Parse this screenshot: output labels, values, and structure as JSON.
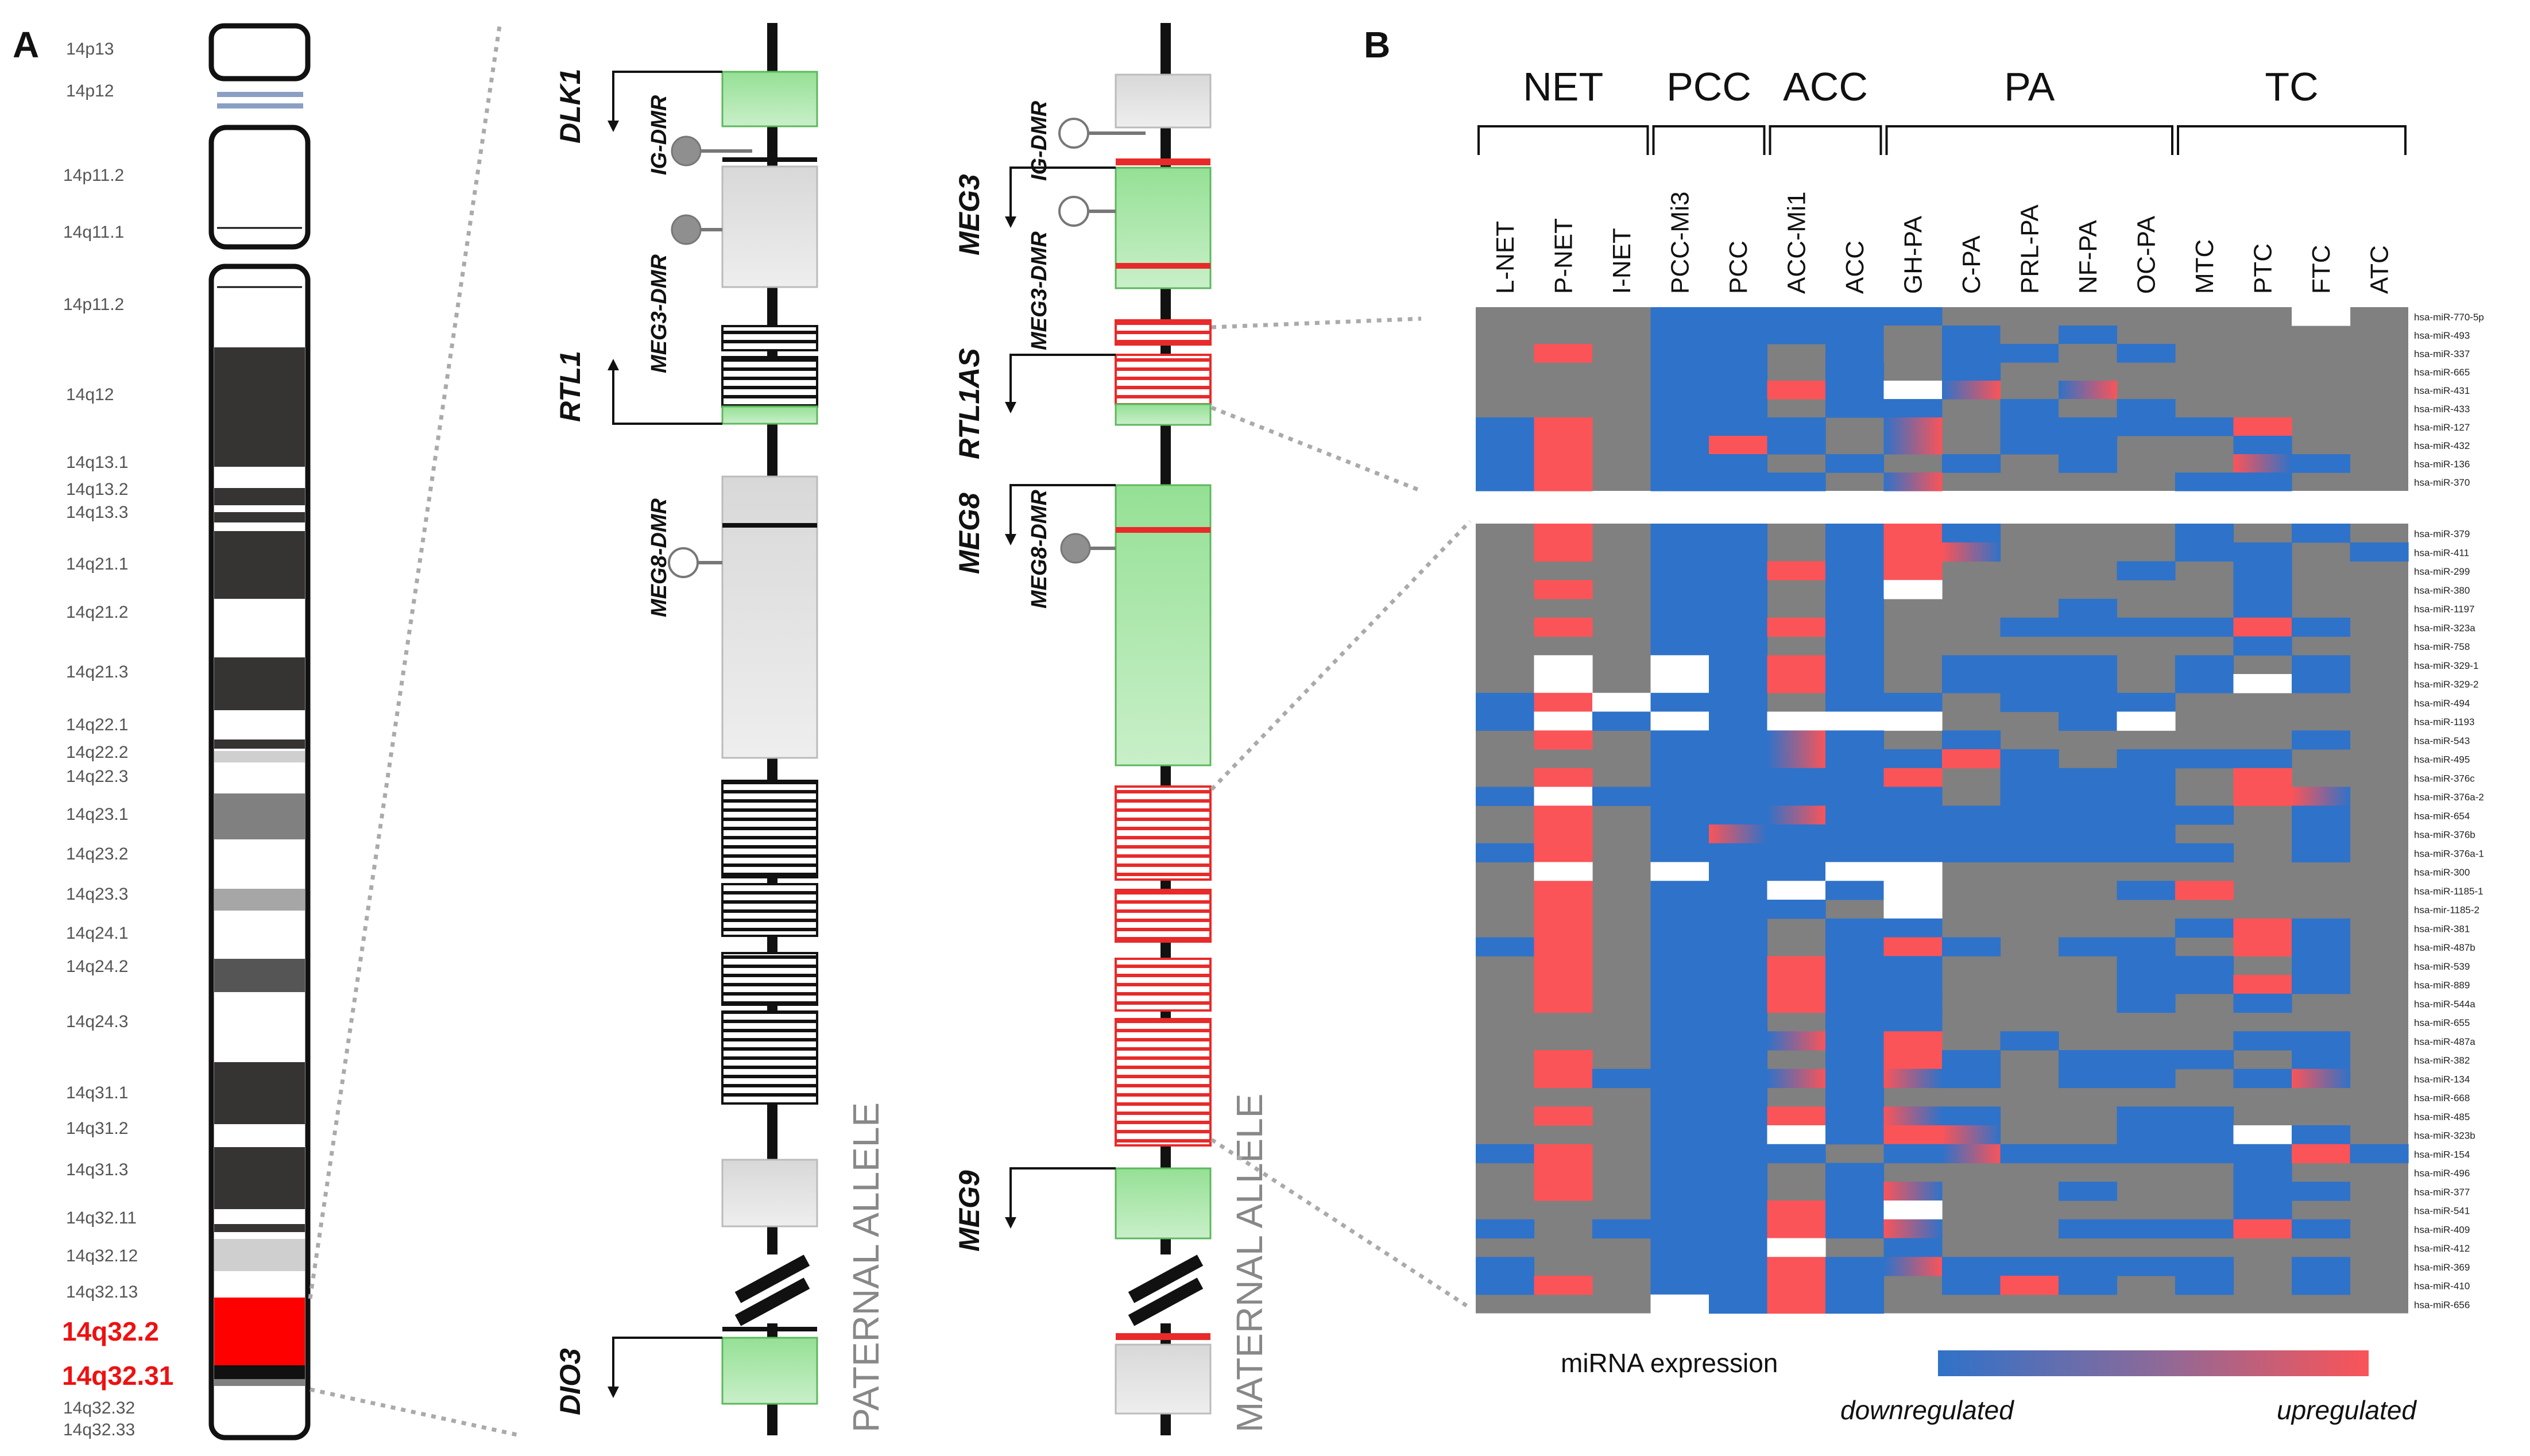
{
  "panel_a": {
    "letter": "A",
    "bands": [
      "14p13",
      "14p12",
      "14p11.2",
      "14q11.1",
      "14p11.2",
      "14q12",
      "14q13.1",
      "14q13.2",
      "14q13.3",
      "14q21.1",
      "14q21.2",
      "14q21.3",
      "14q22.1",
      "14q22.2",
      "14q22.3",
      "14q23.1",
      "14q23.2",
      "14q23.3",
      "14q24.1",
      "14q24.2",
      "14q24.3",
      "14q31.1",
      "14q31.2",
      "14q31.3",
      "14q32.11",
      "14q32.12",
      "14q32.13",
      "14q32.2",
      "14q32.31",
      "14q32.32",
      "14q32.33"
    ],
    "highlight_bands": [
      "14q32.2",
      "14q32.31"
    ],
    "genes": {
      "dlk1": "DLK1",
      "rtl1": "RTL1",
      "dio3": "DIO3",
      "meg3": "MEG3",
      "rtl1as": "RTL1AS",
      "meg8": "MEG8",
      "meg9": "MEG9"
    },
    "dmrs": {
      "ig": "IG-DMR",
      "meg3": "MEG3-DMR",
      "meg8": "MEG8-DMR"
    },
    "paternal_label": "PATERNAL ALLELE",
    "maternal_label": "MATERNAL ALLELE"
  },
  "panel_b": {
    "letter": "B",
    "groups": [
      {
        "name": "NET",
        "span": [
          0,
          2
        ]
      },
      {
        "name": "PCC",
        "span": [
          3,
          4
        ]
      },
      {
        "name": "ACC",
        "span": [
          5,
          6
        ]
      },
      {
        "name": "PA",
        "span": [
          7,
          11
        ]
      },
      {
        "name": "TC",
        "span": [
          12,
          15
        ]
      }
    ],
    "columns": [
      "L-NET",
      "P-NET",
      "I-NET",
      "PCC-Mi3",
      "PCC",
      "ACC-Mi1",
      "ACC",
      "GH-PA",
      "C-PA",
      "PRL-PA",
      "NF-PA",
      "OC-PA",
      "MTC",
      "PTC",
      "FTC",
      "ATC"
    ],
    "rows_top": [
      "hsa-miR-770-5p",
      "hsa-miR-493",
      "hsa-miR-337",
      "hsa-miR-665",
      "hsa-miR-431",
      "hsa-miR-433",
      "hsa-miR-127",
      "hsa-miR-432",
      "hsa-miR-136",
      "hsa-miR-370"
    ],
    "rows_bottom": [
      "hsa-miR-379",
      "hsa-miR-411",
      "hsa-miR-299",
      "hsa-miR-380",
      "hsa-miR-1197",
      "hsa-miR-323a",
      "hsa-miR-758",
      "hsa-miR-329-1",
      "hsa-miR-329-2",
      "hsa-miR-494",
      "hsa-miR-1193",
      "hsa-miR-543",
      "hsa-miR-495",
      "hsa-miR-376c",
      "hsa-miR-376a-2",
      "hsa-miR-654",
      "hsa-miR-376b",
      "hsa-miR-376a-1",
      "hsa-miR-300",
      "hsa-miR-1185-1",
      "hsa-mir-1185-2",
      "hsa-miR-381",
      "hsa-miR-487b",
      "hsa-miR-539",
      "hsa-miR-889",
      "hsa-miR-544a",
      "hsa-miR-655",
      "hsa-miR-487a",
      "hsa-miR-382",
      "hsa-miR-134",
      "hsa-miR-668",
      "hsa-miR-485",
      "hsa-miR-323b",
      "hsa-miR-154",
      "hsa-miR-496",
      "hsa-miR-377",
      "hsa-miR-541",
      "hsa-miR-409",
      "hsa-miR-412",
      "hsa-miR-369",
      "hsa-miR-410",
      "hsa-miR-656"
    ],
    "legend": {
      "title": "miRNA expression",
      "low": "downregulated",
      "high": "upregulated"
    },
    "colors": {
      "down": "#2f72c9",
      "up": "#fa5458",
      "none": "#808080",
      "missing": "#ffffff"
    }
  },
  "chart_data": {
    "type": "heatmap",
    "title": "miRNA expression",
    "value_scale": "-1 = downregulated, 0 = not changed, 1 = upregulated, g = gradient (down to up), h = gradient (up to down), w = not available",
    "columns": [
      "L-NET",
      "P-NET",
      "I-NET",
      "PCC-Mi3",
      "PCC",
      "ACC-Mi1",
      "ACC",
      "GH-PA",
      "C-PA",
      "PRL-PA",
      "NF-PA",
      "OC-PA",
      "MTC",
      "PTC",
      "FTC",
      "ATC"
    ],
    "top_block": [
      "00-ddddd000000w00",
      "00-dddd-d-d00000",
      "01-dd0d-dd-d0-00",
      "002dd0d0d00000000",
      "00-dd1dwg0g00000",
      "00-dd0dd0d-d0000",
      "d10ddd0g0dddd100",
      "d10d1d0g0dd00d00",
      "d10dd0d0d0d00hd00",
      "d10ddd0g0000dd00"
    ],
    "bottom_block": [
      "010dd0d1d000d0d00",
      "010dd0d1h000dd0dd",
      "000dd1d1000d0d000",
      "010dd0dw00000d000",
      "000dd0d000d00d000",
      "010dd1d00dddd1d00",
      "000dd0d000000d000",
      "0w0wd1d0ddd0d0d00",
      "0w0wd1d0ddd0dwd00",
      "d1wdd0dd0ddd00000",
      "dwdwdwww00dw00000",
      "010ddgd0d00000d00",
      "000ddgdd1d0ddd000",
      "010dddd10ddd0100",
      "dwdddddd0ddd01h00",
      "010ddgddddddd0d00",
      "010dhddddddd00d00",
      "d10dddddddddd0d00",
      "0w0wddww0000000000",
      "010ddwdw000d10000",
      "010ddd0w000000000",
      "010dd0dd0000d1d00",
      "d10dd0d1d0dd01d00",
      "010dd1dd000dd0d00",
      "010dd1dd000dd1d00",
      "010dd1dd000d0d000",
      "000dd0dd00000000",
      "000ddgd10d000dd00",
      "010dd0d1d0ddd0d00",
      "01dddgdhd0dd0dh00",
      "000dd0d000000000",
      "010dd1dhd00dd000",
      "000ddwd1h00ddwd00",
      "d10ddd0dgddddd1d00",
      "010dd0d000000d000",
      "010dd0dh00d00dd00",
      "000dd1dw00000d000",
      "d0ddd1dh00ddd1d00",
      "000ddw0d000000000",
      "d00dd1dgddddd0d00",
      "d10dd1d0d1d0d0d00",
      "000wd1d000000000"
    ],
    "legend_low": "downregulated",
    "legend_high": "upregulated"
  }
}
